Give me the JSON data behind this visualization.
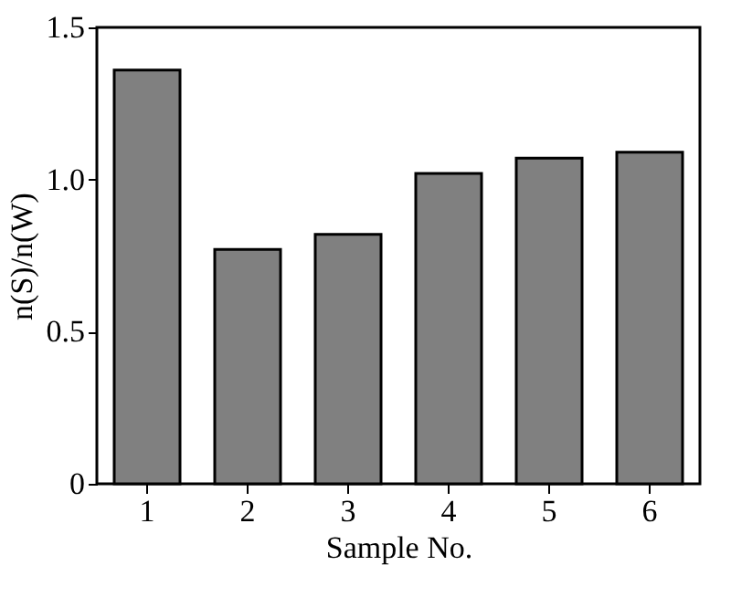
{
  "chart_data": {
    "type": "bar",
    "xlabel": "Sample No.",
    "ylabel": "n(S)/n(W)",
    "categories": [
      "1",
      "2",
      "3",
      "4",
      "5",
      "6"
    ],
    "values": [
      1.36,
      0.77,
      0.82,
      1.02,
      1.07,
      1.09
    ],
    "color": "#808080",
    "ylim": [
      0,
      1.5
    ],
    "yticks": [
      {
        "value": 0,
        "label": "0"
      },
      0.5,
      {
        "value": 1,
        "label": "1.0"
      },
      1.5
    ],
    "grid": false
  }
}
